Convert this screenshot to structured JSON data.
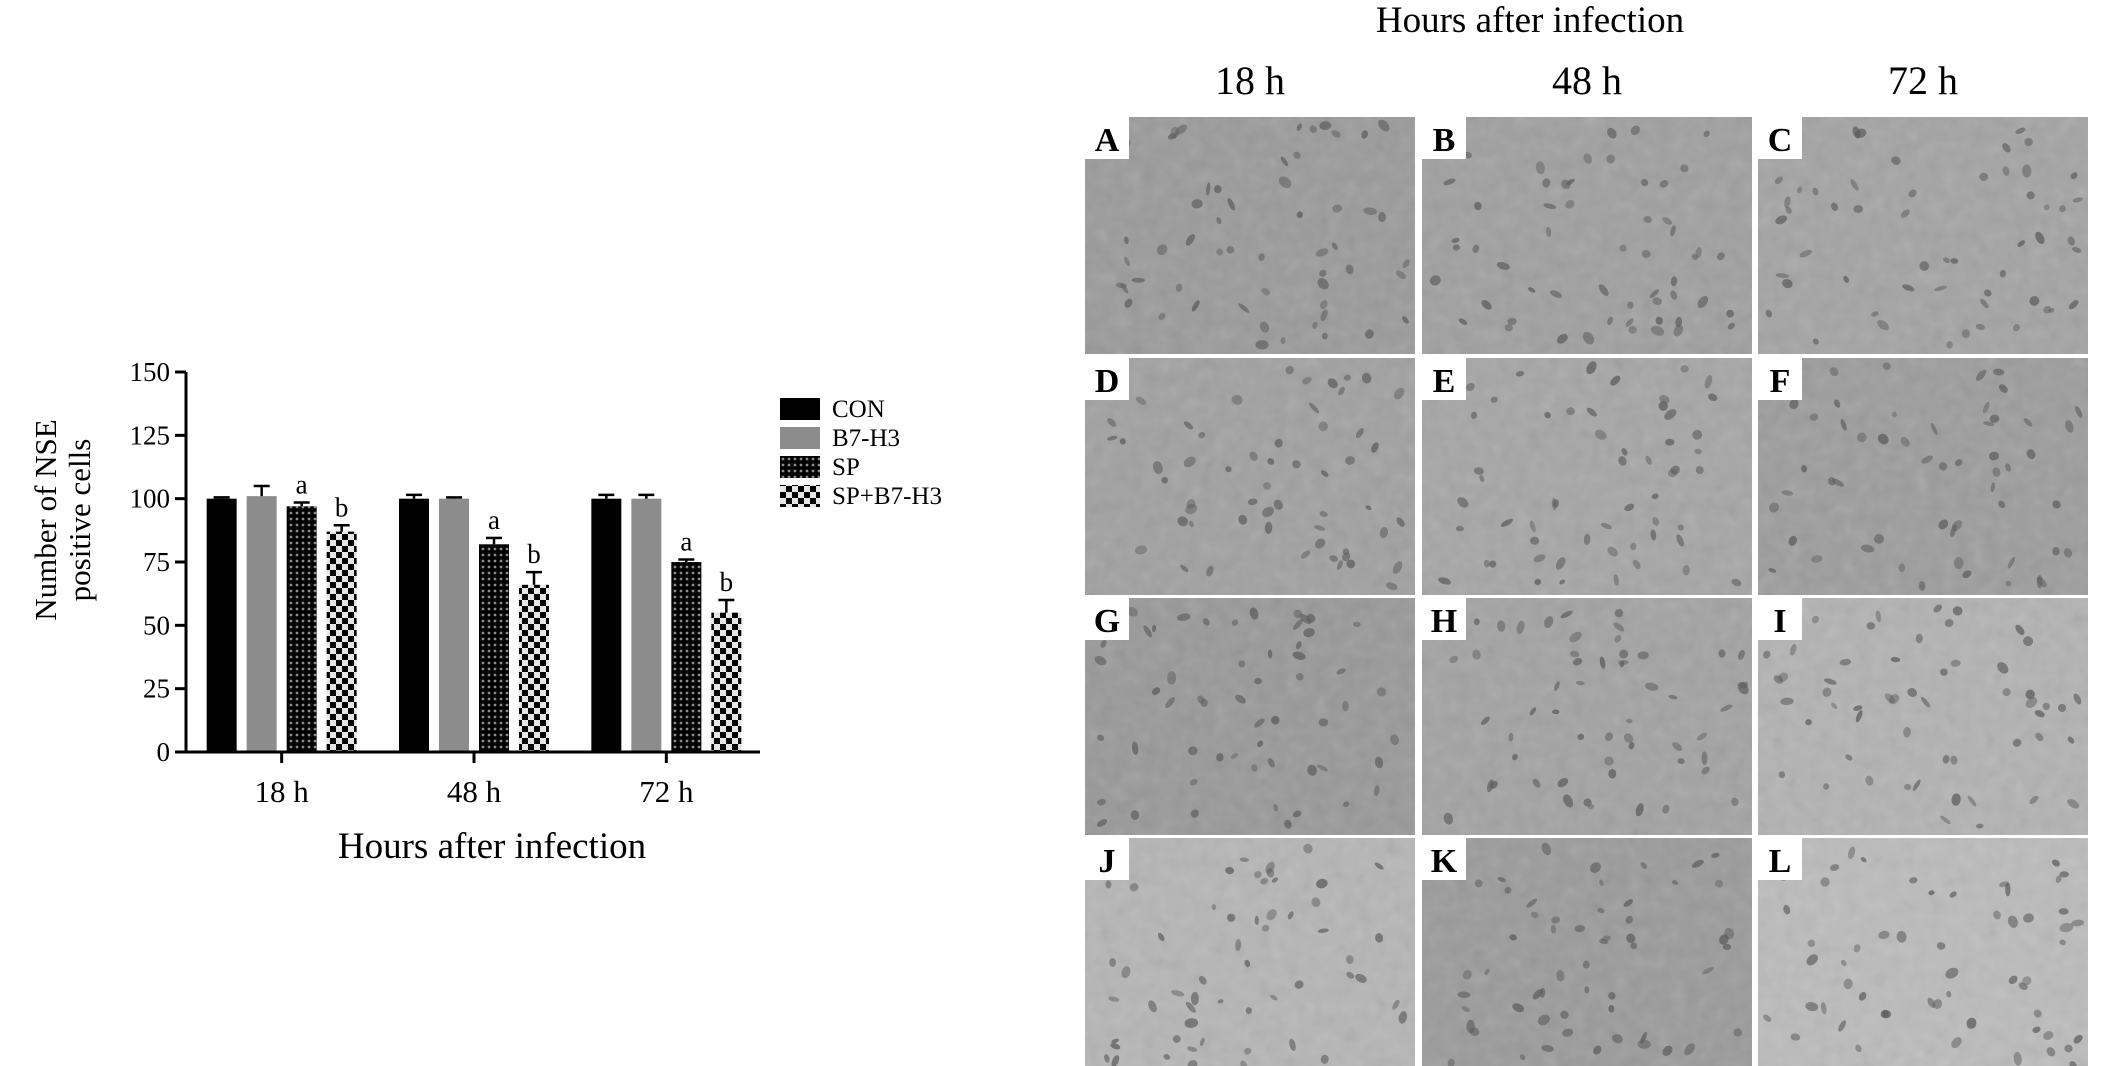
{
  "chart_data": {
    "type": "bar",
    "xlabel": "Hours after infection",
    "ylabel": [
      "Number of NSE",
      "positive cells"
    ],
    "categories": [
      "18 h",
      "48 h",
      "72 h"
    ],
    "ylim": [
      0,
      150
    ],
    "yticks": [
      0,
      25,
      50,
      75,
      100,
      125,
      150
    ],
    "legend_position": "right",
    "series": [
      {
        "name": "CON",
        "fill": "solid-black",
        "values": [
          100,
          100,
          100
        ],
        "errors": [
          0.5,
          1.5,
          1.5
        ],
        "labels": [
          "",
          "",
          ""
        ]
      },
      {
        "name": "B7-H3",
        "fill": "solid-gray",
        "values": [
          101,
          100,
          100
        ],
        "errors": [
          4,
          0.5,
          1.5
        ],
        "labels": [
          "",
          "",
          ""
        ]
      },
      {
        "name": "SP",
        "fill": "dense-dots",
        "values": [
          97,
          82,
          75
        ],
        "errors": [
          1.5,
          2.5,
          1
        ],
        "labels": [
          "a",
          "a",
          "a"
        ]
      },
      {
        "name": "SP+B7-H3",
        "fill": "checker",
        "values": [
          87,
          66,
          55
        ],
        "errors": [
          2.5,
          5,
          5
        ],
        "labels": [
          "b",
          "b",
          "b"
        ]
      }
    ],
    "colors": {
      "CON": "#000000",
      "B7-H3": "#8c8c8c",
      "SP": "#2a2a2a",
      "SP+B7-H3": "#111111"
    }
  },
  "micrographs": {
    "title": "Hours after infection",
    "columns": [
      "18 h",
      "48 h",
      "72 h"
    ],
    "panels": [
      "A",
      "B",
      "C",
      "D",
      "E",
      "F",
      "G",
      "H",
      "I",
      "J",
      "K",
      "L"
    ],
    "tones": [
      "#9a9a9a",
      "#9f9f9f",
      "#a3a3a3",
      "#a0a0a0",
      "#a5a5a5",
      "#9c9c9c",
      "#989898",
      "#a2a2a2",
      "#b2b2b2",
      "#b5b5b5",
      "#9a9a9a",
      "#bbbbbb"
    ]
  }
}
